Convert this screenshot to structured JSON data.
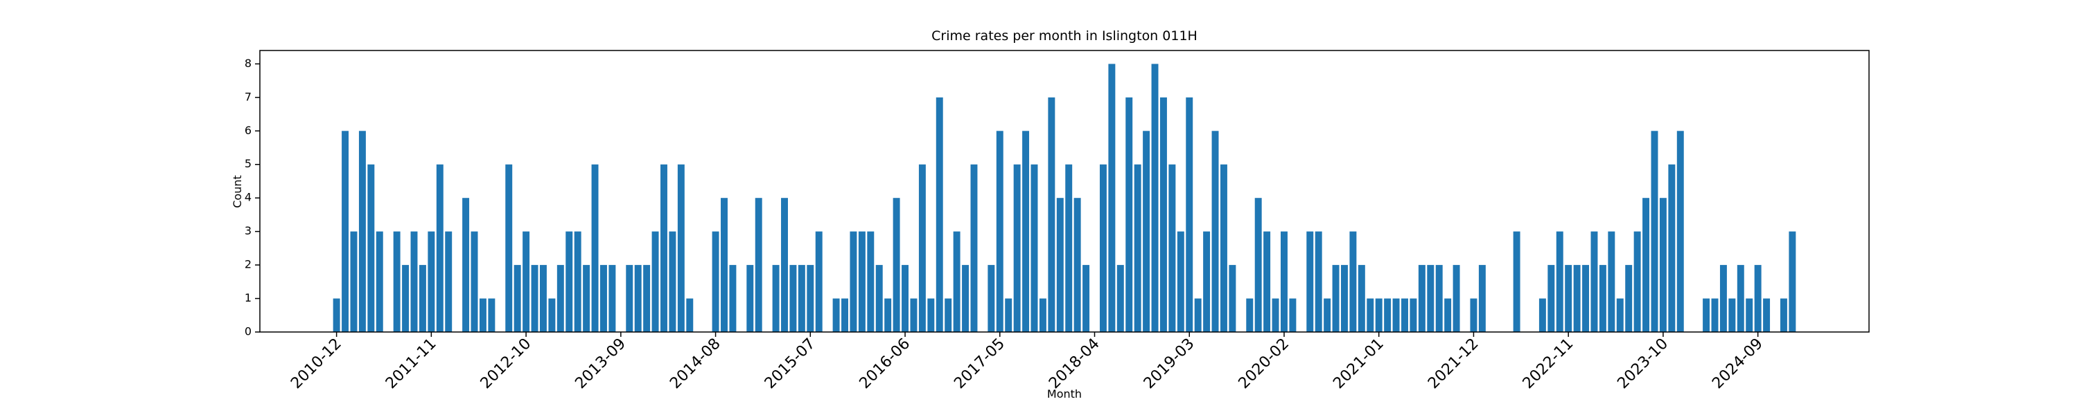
{
  "chart_data": {
    "type": "bar",
    "title": "Crime rates per month in Islington 011H",
    "x_label": "Month",
    "y_label": "Count",
    "color": "#1f77b4",
    "categories": [
      "2010-12",
      null,
      null,
      null,
      null,
      null,
      null,
      null,
      null,
      null,
      null,
      "2011-11",
      null,
      null,
      null,
      null,
      null,
      null,
      null,
      null,
      null,
      null,
      "2012-10",
      null,
      null,
      null,
      null,
      null,
      null,
      null,
      null,
      null,
      null,
      "2013-09",
      null,
      null,
      null,
      null,
      null,
      null,
      null,
      null,
      null,
      null,
      "2014-08",
      null,
      null,
      null,
      null,
      null,
      null,
      null,
      null,
      null,
      null,
      "2015-07",
      null,
      null,
      null,
      null,
      null,
      null,
      null,
      null,
      null,
      null,
      "2016-06",
      null,
      null,
      null,
      null,
      null,
      null,
      null,
      null,
      null,
      null,
      "2017-05",
      null,
      null,
      null,
      null,
      null,
      null,
      null,
      null,
      null,
      null,
      "2018-04",
      null,
      null,
      null,
      null,
      null,
      null,
      null,
      null,
      null,
      null,
      "2019-03",
      null,
      null,
      null,
      null,
      null,
      null,
      null,
      null,
      null,
      null,
      "2020-02",
      null,
      null,
      null,
      null,
      null,
      null,
      null,
      null,
      null,
      null,
      "2021-01",
      null,
      null,
      null,
      null,
      null,
      null,
      null,
      null,
      null,
      null,
      "2021-12",
      null,
      null,
      null,
      null,
      null,
      null,
      null,
      null,
      null,
      null,
      "2022-11",
      null,
      null,
      null,
      null,
      null,
      null,
      null,
      null,
      null,
      null,
      "2023-10",
      null,
      null,
      null,
      null,
      null,
      null,
      null,
      null,
      null,
      null,
      "2024-09",
      null,
      null,
      null,
      null
    ],
    "values": [
      1,
      6,
      3,
      6,
      5,
      3,
      0,
      3,
      2,
      3,
      2,
      3,
      5,
      3,
      0,
      4,
      3,
      1,
      1,
      0,
      5,
      2,
      3,
      2,
      2,
      1,
      2,
      3,
      3,
      2,
      5,
      2,
      2,
      0,
      2,
      2,
      2,
      3,
      5,
      3,
      5,
      1,
      0,
      0,
      3,
      4,
      2,
      0,
      2,
      4,
      0,
      2,
      4,
      2,
      2,
      2,
      3,
      0,
      1,
      1,
      3,
      3,
      3,
      2,
      1,
      4,
      2,
      1,
      5,
      1,
      7,
      1,
      3,
      2,
      5,
      0,
      2,
      6,
      1,
      5,
      6,
      5,
      1,
      7,
      4,
      5,
      4,
      2,
      0,
      5,
      8,
      2,
      7,
      5,
      6,
      8,
      7,
      5,
      3,
      7,
      1,
      3,
      6,
      5,
      2,
      0,
      1,
      4,
      3,
      1,
      3,
      1,
      0,
      3,
      3,
      1,
      2,
      2,
      3,
      2,
      1,
      1,
      1,
      1,
      1,
      1,
      2,
      2,
      2,
      1,
      2,
      0,
      1,
      2,
      0,
      0,
      0,
      3,
      0,
      0,
      1,
      2,
      3,
      2,
      2,
      2,
      3,
      2,
      3,
      1,
      2,
      3,
      4,
      6,
      4,
      5,
      6,
      0,
      0,
      1,
      1,
      2,
      1,
      2,
      1,
      2,
      1,
      0,
      1,
      3
    ],
    "xlim": [
      -8.9,
      177.9
    ],
    "ylim": [
      0,
      8.4
    ],
    "yticks": [
      0,
      1,
      2,
      3,
      4,
      5,
      6,
      7,
      8
    ]
  }
}
